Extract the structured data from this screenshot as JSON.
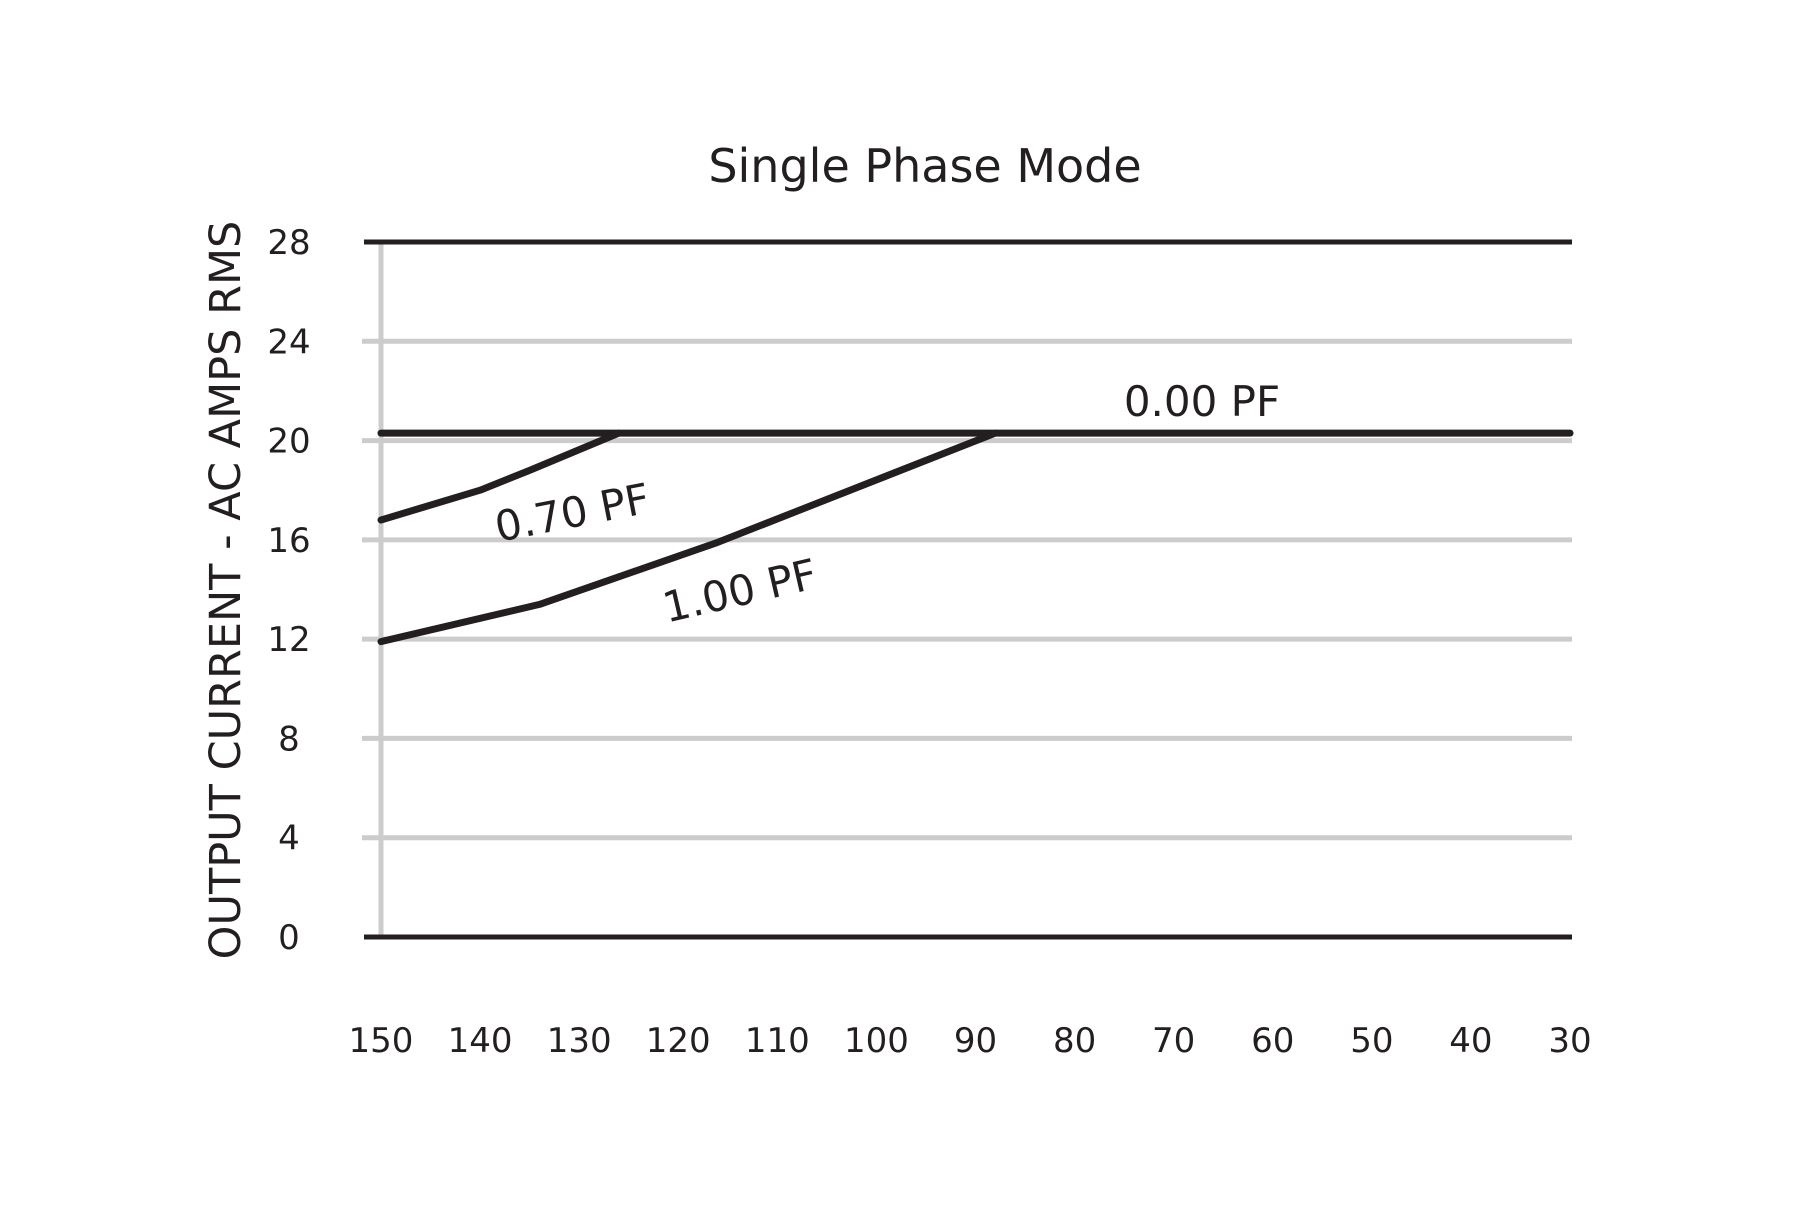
{
  "chart_data": {
    "type": "line",
    "title": "Single Phase Mode",
    "ylabel": "OUTPUT CURRENT - AC AMPS RMS",
    "xlabel": "",
    "xlim": [
      150,
      30
    ],
    "ylim": [
      0,
      28
    ],
    "x_ticks": [
      150,
      140,
      130,
      120,
      110,
      100,
      90,
      80,
      70,
      60,
      50,
      40,
      30
    ],
    "y_ticks": [
      0,
      4,
      8,
      12,
      16,
      20,
      24,
      28
    ],
    "grid": true,
    "legend": "none (inline labels)",
    "series": [
      {
        "name": "0.00 PF",
        "x": [
          150,
          30
        ],
        "y": [
          20.3,
          20.3
        ]
      },
      {
        "name": "0.70 PF",
        "x": [
          150,
          140,
          135,
          126
        ],
        "y": [
          16.8,
          18.0,
          18.8,
          20.3
        ]
      },
      {
        "name": "1.00 PF",
        "x": [
          150,
          134,
          116,
          88
        ],
        "y": [
          11.9,
          13.4,
          15.9,
          20.3
        ]
      }
    ]
  }
}
